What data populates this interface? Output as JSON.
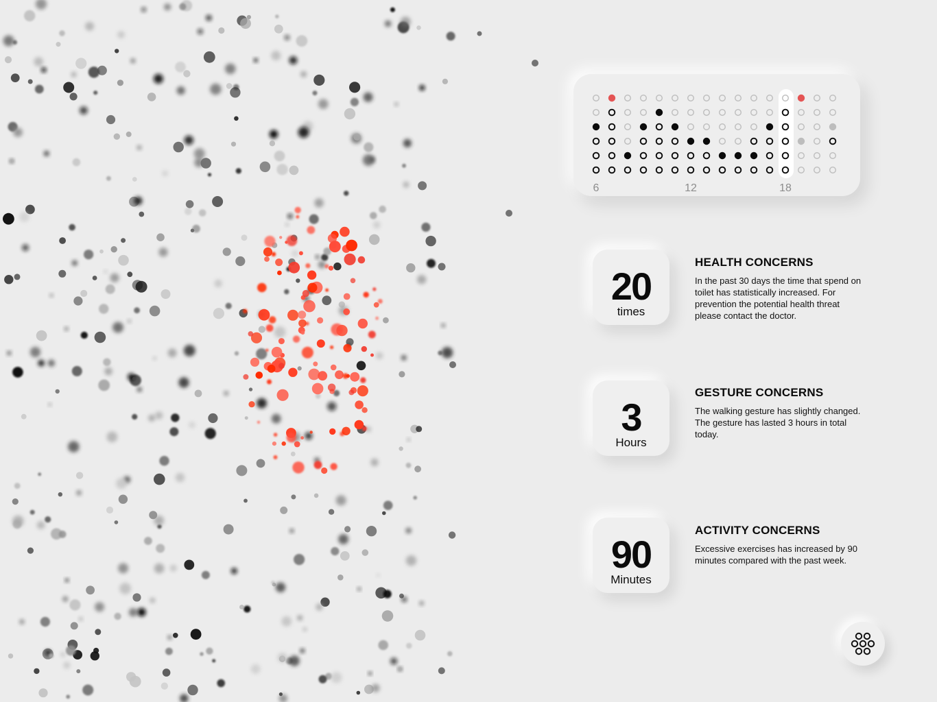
{
  "hour_grid": {
    "axis_labels": [
      "6",
      "12",
      "18"
    ],
    "colors": {
      "filled": "#0b0b0b",
      "hollow_stroke": "#0b0b0b",
      "empty_stroke": "#bdbdbd",
      "grey": "#bdbdbd",
      "alert": "#e45454"
    }
  },
  "concerns": [
    {
      "value": "20",
      "unit": "times",
      "title": "HEALTH CONCERNS",
      "description": "In the past 30 days the time that spend on toilet has statistically increased. For prevention the potential health threat please contact the doctor."
    },
    {
      "value": "3",
      "unit": "Hours",
      "title": "GESTURE CONCERNS",
      "description": "The walking gesture has slightly changed. The gesture has lasted 3 hours in total today."
    },
    {
      "value": "90",
      "unit": "Minutes",
      "title": "ACTIVITY CONCERNS",
      "description": "Excessive exercises has increased by 90 minutes compared with the past week."
    }
  ],
  "menu": {
    "icon": "flower-grid-icon"
  },
  "accent_colors": {
    "red": "#ff3a1a",
    "grey": "#8a8a8a",
    "dark": "#111111"
  }
}
